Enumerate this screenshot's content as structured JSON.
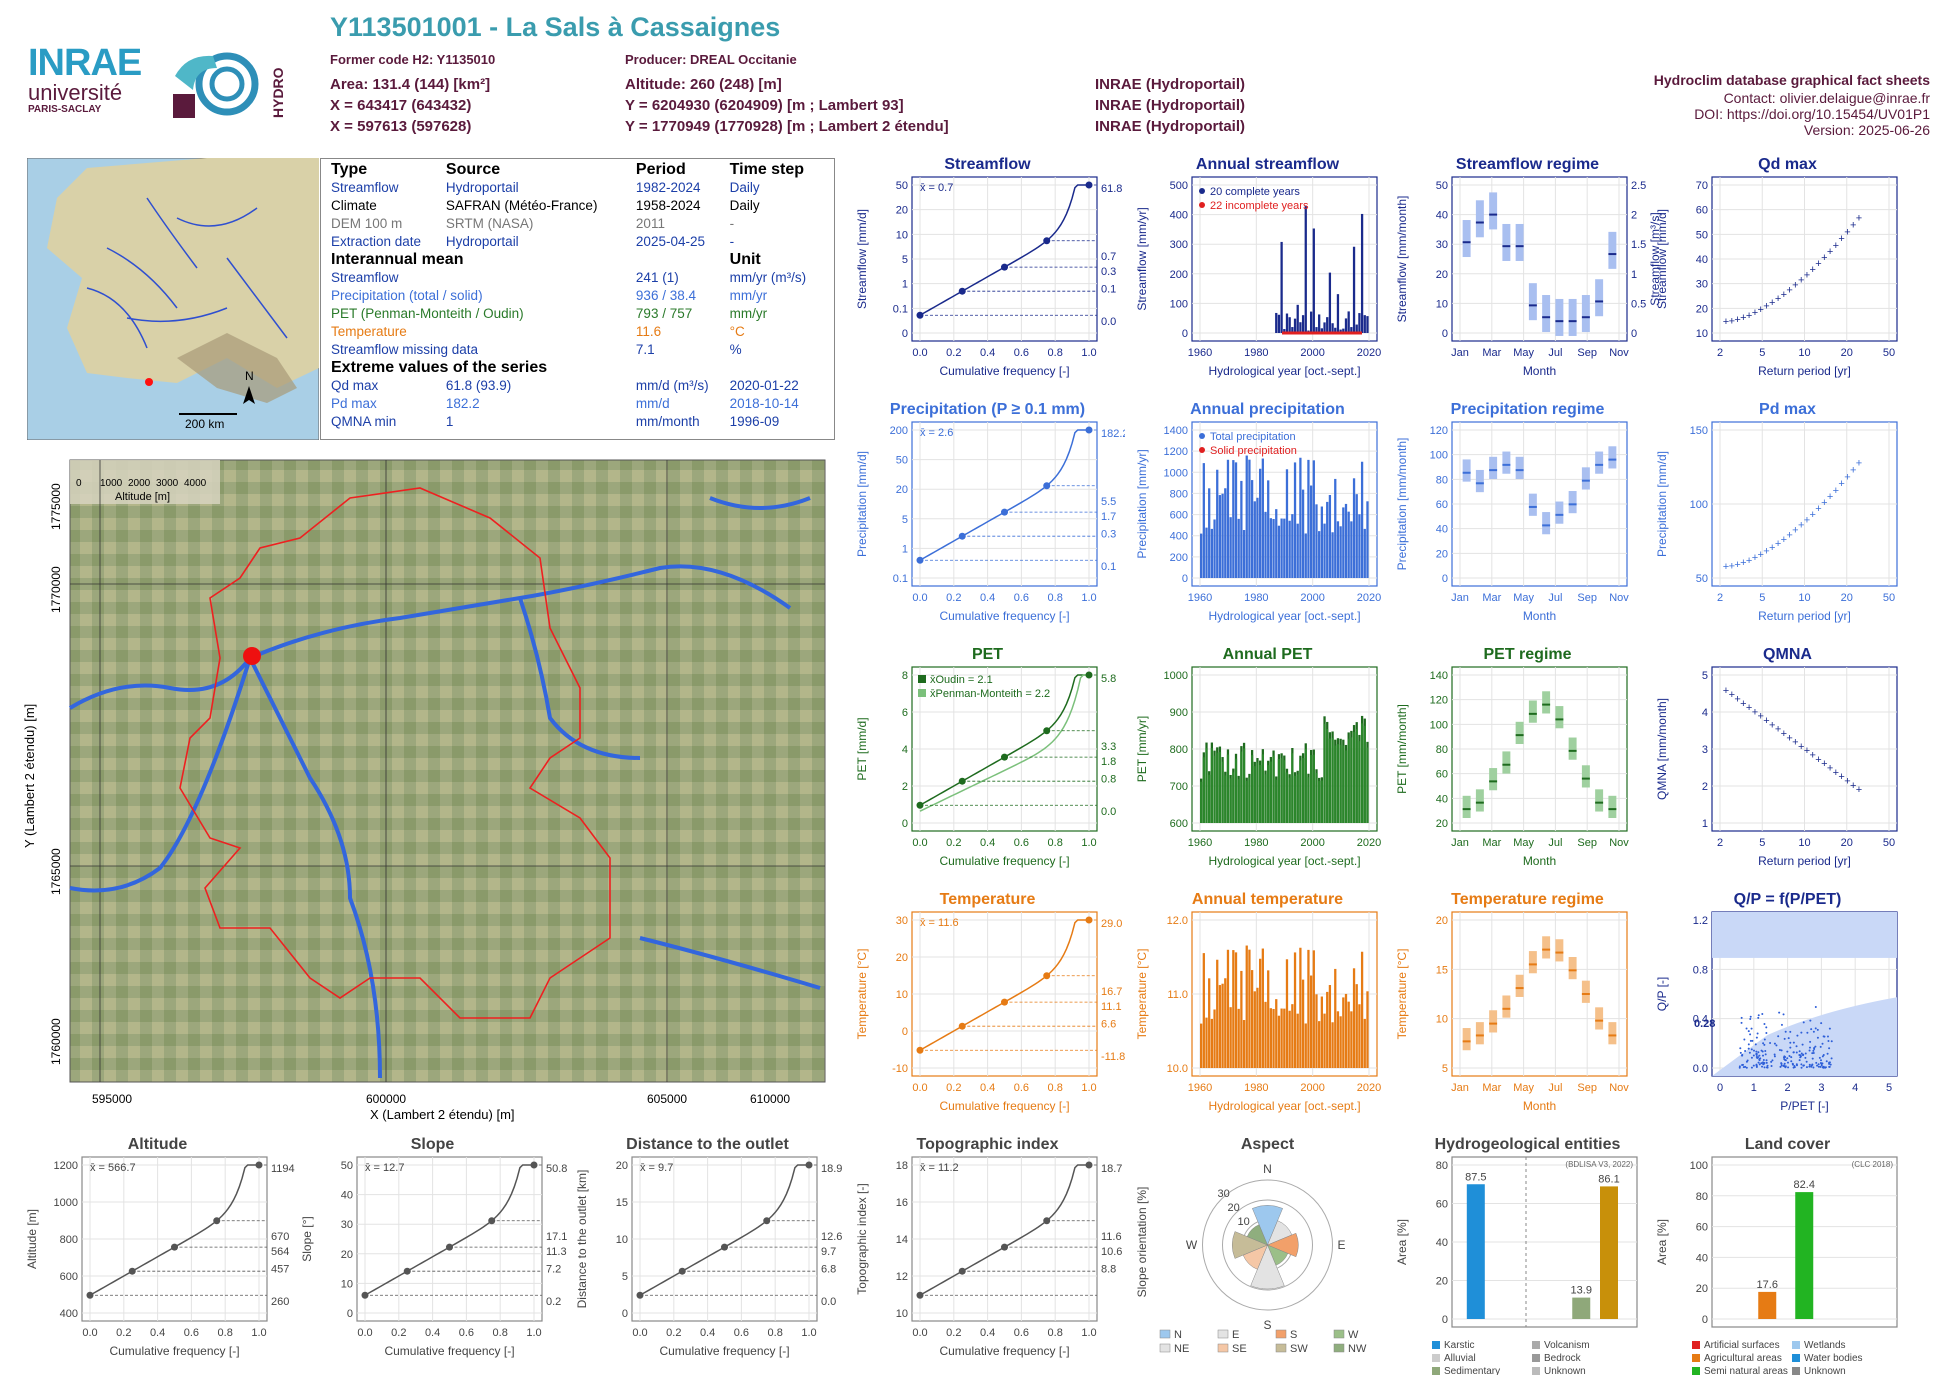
{
  "header": {
    "station": "Y113501001 - La Sals à Cassaignes",
    "former_code": "Former code H2: Y1135010",
    "producer": "Producer: DREAL Occitanie",
    "area": "Area: 131.4 (144) [km²]",
    "altitude": "Altitude: 260 (248) [m]",
    "x_l93": "X = 643417 (643432)",
    "y_l93": "Y = 6204930 (6204909) [m ; Lambert 93]",
    "x_l2": "X = 597613 (597628)",
    "y_l2": "Y = 1770949 (1770928) [m ; Lambert 2 étendu]",
    "src1": "INRAE (Hydroportail)",
    "src2": "INRAE (Hydroportail)",
    "src3": "INRAE (Hydroportail)",
    "right_title": "Hydroclim database graphical fact sheets",
    "contact": "Contact: olivier.delaigue@inrae.fr",
    "doi": "DOI: https://doi.org/10.15454/UV01P1",
    "version": "Version: 2025-06-26",
    "logo_inrae": "INRAE",
    "logo_univ": "université",
    "logo_paris": "PARIS-SACLAY",
    "logo_hydro": "HYDRO"
  },
  "minimap": {
    "north": "N",
    "scale": "200 km"
  },
  "info": {
    "h_type": "Type",
    "h_source": "Source",
    "h_period": "Period",
    "h_step": "Time step",
    "rows": [
      {
        "type": "Streamflow",
        "source": "Hydroportail",
        "period": "1982-2024",
        "step": "Daily"
      },
      {
        "type": "Climate",
        "source": "SAFRAN (Météo-France)",
        "period": "1958-2024",
        "step": "Daily"
      },
      {
        "type": "DEM 100 m",
        "source": "SRTM (NASA)",
        "period": "2011",
        "step": "-"
      },
      {
        "type": "Extraction date",
        "source": "Hydroportail",
        "period": "2025-04-25",
        "step": "-"
      }
    ],
    "h_mean": "Interannual mean",
    "h_unit": "Unit",
    "means": [
      {
        "name": "Streamflow",
        "val": "241 (1)",
        "unit": "mm/yr (m³/s)"
      },
      {
        "name": "Precipitation (total / solid)",
        "val": "936 / 38.4",
        "unit": "mm/yr"
      },
      {
        "name": "PET (Penman-Monteith / Oudin)",
        "val": "793 / 757",
        "unit": "mm/yr"
      },
      {
        "name": "Temperature",
        "val": "11.6",
        "unit": "°C"
      },
      {
        "name": "Streamflow missing data",
        "val": "7.1",
        "unit": "%"
      }
    ],
    "h_extreme": "Extreme values of the series",
    "extremes": [
      {
        "name": "Qd max",
        "val": "61.8 (93.9)",
        "unit": "mm/d (m³/s)",
        "date": "2020-01-22"
      },
      {
        "name": "Pd max",
        "val": "182.2",
        "unit": "mm/d",
        "date": "2018-10-14"
      },
      {
        "name": "QMNA min",
        "val": "1",
        "unit": "mm/month",
        "date": "1996-09"
      }
    ]
  },
  "map": {
    "ylabel": "Y (Lambert 2 étendu) [m]",
    "xlabel": "X (Lambert 2 étendu) [m]",
    "xticks": [
      "595000",
      "600000",
      "605000",
      "610000"
    ],
    "yticks": [
      "1775000",
      "1770000",
      "1765000",
      "1760000"
    ],
    "legend_title": "Altitude [m]",
    "legend_ticks": [
      "0",
      "1000",
      "2000",
      "3000",
      "4000"
    ]
  },
  "chart_data": [
    {
      "id": "q_cdf",
      "type": "line",
      "title": "Streamflow",
      "xlabel": "Cumulative frequency [-]",
      "ylabel": "Streamflow [mm/d]",
      "mean_label": "x̄ = 0.7",
      "right_labels": [
        "61.8",
        "0.7",
        "0.3",
        "0.1",
        "0.0"
      ],
      "xticks": [
        "0.0",
        "0.2",
        "0.4",
        "0.6",
        "0.8",
        "1.0"
      ],
      "yticks": [
        "0",
        "0.1",
        "1",
        "5",
        "10",
        "20",
        "50"
      ],
      "log": true
    },
    {
      "id": "q_annual",
      "type": "bar",
      "title": "Annual streamflow",
      "xlabel": "Hydrological year [oct.-sept.]",
      "ylabel": "Streamflow [mm/yr]",
      "legend": [
        "20 complete years",
        "22 incomplete years"
      ],
      "xticks": [
        "1960",
        "1980",
        "2000",
        "2020"
      ],
      "yticks": [
        "0",
        "100",
        "200",
        "300",
        "400",
        "500"
      ]
    },
    {
      "id": "q_regime",
      "type": "box",
      "title": "Streamflow regime",
      "xlabel": "Month",
      "ylabel": "Streamflow [mm/month]",
      "ylabel2": "Streamflow [m³/s]",
      "xticks": [
        "Jan",
        "Mar",
        "May",
        "Jul",
        "Sep",
        "Nov"
      ],
      "yticks": [
        "0",
        "10",
        "20",
        "30",
        "40",
        "50"
      ],
      "yticks2": [
        "0",
        "0.5",
        "1",
        "1.5",
        "2",
        "2.5"
      ],
      "medians": [
        23,
        28,
        30,
        22,
        22,
        7,
        4,
        3,
        3,
        4,
        8,
        20
      ]
    },
    {
      "id": "qd_max",
      "type": "scatter",
      "title": "Qd max",
      "xlabel": "Return period [yr]",
      "ylabel": "Streamflow [mm/d]",
      "xticks": [
        "2",
        "5",
        "10",
        "20",
        "50"
      ],
      "yticks": [
        "10",
        "20",
        "30",
        "40",
        "50",
        "60",
        "70"
      ]
    },
    {
      "id": "p_cdf",
      "type": "line",
      "title": "Precipitation (P ≥ 0.1 mm)",
      "xlabel": "Cumulative frequency [-]",
      "ylabel": "Precipitation [mm/d]",
      "mean_label": "x̄ = 2.6",
      "right_labels": [
        "182.2",
        "5.5",
        "1.7",
        "0.3",
        "0.1"
      ],
      "xticks": [
        "0.0",
        "0.2",
        "0.4",
        "0.6",
        "0.8",
        "1.0"
      ],
      "yticks": [
        "0.1",
        "1",
        "5",
        "20",
        "50",
        "200"
      ]
    },
    {
      "id": "p_annual",
      "type": "bar",
      "title": "Annual precipitation",
      "xlabel": "Hydrological year [oct.-sept.]",
      "ylabel": "Precipitation [mm/yr]",
      "legend": [
        "Total precipitation",
        "Solid precipitation"
      ],
      "xticks": [
        "1960",
        "1980",
        "2000",
        "2020"
      ],
      "yticks": [
        "0",
        "200",
        "400",
        "600",
        "800",
        "1000",
        "1200",
        "1400"
      ]
    },
    {
      "id": "p_regime",
      "type": "box",
      "title": "Precipitation regime",
      "xlabel": "Month",
      "ylabel": "Precipitation [mm/month]",
      "xticks": [
        "Jan",
        "Mar",
        "May",
        "Jul",
        "Sep",
        "Nov"
      ],
      "yticks": [
        "0",
        "20",
        "40",
        "60",
        "80",
        "100",
        "120"
      ],
      "medians": [
        80,
        72,
        82,
        86,
        82,
        54,
        40,
        48,
        56,
        74,
        86,
        90
      ]
    },
    {
      "id": "pd_max",
      "type": "scatter",
      "title": "Pd max",
      "xlabel": "Return period [yr]",
      "ylabel": "Precipitation [mm/d]",
      "xticks": [
        "2",
        "5",
        "10",
        "20",
        "50"
      ],
      "yticks": [
        "50",
        "100",
        "150"
      ]
    },
    {
      "id": "pet_cdf",
      "type": "line",
      "title": "PET",
      "xlabel": "Cumulative frequency [-]",
      "ylabel": "PET [mm/d]",
      "legend": [
        "x̄Oudin = 2.1",
        "x̄Penman-Monteith = 2.2"
      ],
      "right_labels": [
        "5.8",
        "3.3",
        "1.8",
        "0.8",
        "0.0"
      ],
      "xticks": [
        "0.0",
        "0.2",
        "0.4",
        "0.6",
        "0.8",
        "1.0"
      ],
      "yticks": [
        "0",
        "2",
        "4",
        "6",
        "8"
      ]
    },
    {
      "id": "pet_annual",
      "type": "bar",
      "title": "Annual PET",
      "xlabel": "Hydrological year [oct.-sept.]",
      "ylabel": "PET [mm/yr]",
      "xticks": [
        "1960",
        "1980",
        "2000",
        "2020"
      ],
      "yticks": [
        "600",
        "700",
        "800",
        "900",
        "1000"
      ]
    },
    {
      "id": "pet_regime",
      "type": "box",
      "title": "PET regime",
      "xlabel": "Month",
      "ylabel": "PET [mm/month]",
      "xticks": [
        "Jan",
        "Mar",
        "May",
        "Jul",
        "Sep",
        "Nov"
      ],
      "yticks": [
        "20",
        "40",
        "60",
        "80",
        "100",
        "120",
        "140"
      ],
      "medians": [
        15,
        22,
        45,
        63,
        95,
        118,
        128,
        112,
        78,
        48,
        22,
        15
      ]
    },
    {
      "id": "qmna",
      "type": "scatter",
      "title": "QMNA",
      "xlabel": "Return period [yr]",
      "ylabel": "QMNA [mm/month]",
      "xticks": [
        "2",
        "5",
        "10",
        "20",
        "50"
      ],
      "yticks": [
        "1",
        "2",
        "3",
        "4",
        "5"
      ]
    },
    {
      "id": "t_cdf",
      "type": "line",
      "title": "Temperature",
      "xlabel": "Cumulative frequency [-]",
      "ylabel": "Temperature [°C]",
      "mean_label": "x̄ = 11.6",
      "right_labels": [
        "29.0",
        "16.7",
        "11.1",
        "6.6",
        "-11.8"
      ],
      "xticks": [
        "0.0",
        "0.2",
        "0.4",
        "0.6",
        "0.8",
        "1.0"
      ],
      "yticks": [
        "-10",
        "0",
        "10",
        "20",
        "30"
      ]
    },
    {
      "id": "t_annual",
      "type": "bar",
      "title": "Annual temperature",
      "xlabel": "Hydrological year [oct.-sept.]",
      "ylabel": "Temperature [°C]",
      "xticks": [
        "1960",
        "1980",
        "2000",
        "2020"
      ],
      "yticks": [
        "10.0",
        "11.0",
        "12.0"
      ]
    },
    {
      "id": "t_regime",
      "type": "box",
      "title": "Temperature regime",
      "xlabel": "Month",
      "ylabel": "Temperature [°C]",
      "xticks": [
        "Jan",
        "Mar",
        "May",
        "Jul",
        "Sep",
        "Nov"
      ],
      "yticks": [
        "5",
        "10",
        "15",
        "20"
      ],
      "medians": [
        4.5,
        5.5,
        7.5,
        10,
        13.5,
        17.5,
        20,
        19.5,
        16.5,
        12.5,
        8,
        5.5
      ]
    },
    {
      "id": "qp",
      "type": "scatter",
      "title": "Q/P = f(P/PET)",
      "xlabel": "P/PET [-]",
      "ylabel": "Q/P [-]",
      "annotation": "0.28",
      "xticks": [
        "0",
        "1",
        "2",
        "3",
        "4",
        "5"
      ],
      "yticks": [
        "0.0",
        "0.4",
        "0.8",
        "1.2"
      ]
    },
    {
      "id": "alt_cdf",
      "type": "line",
      "title": "Altitude",
      "xlabel": "Cumulative frequency [-]",
      "ylabel": "Altitude [m]",
      "mean_label": "x̄ = 566.7",
      "right_labels": [
        "1194",
        "670",
        "564",
        "457",
        "260"
      ],
      "xticks": [
        "0.0",
        "0.2",
        "0.4",
        "0.6",
        "0.8",
        "1.0"
      ],
      "yticks": [
        "400",
        "600",
        "800",
        "1000",
        "1200"
      ]
    },
    {
      "id": "slope_cdf",
      "type": "line",
      "title": "Slope",
      "xlabel": "Cumulative frequency [-]",
      "ylabel": "Slope [°]",
      "mean_label": "x̄ = 12.7",
      "right_labels": [
        "50.8",
        "17.1",
        "11.3",
        "7.2",
        "0.2"
      ],
      "xticks": [
        "0.0",
        "0.2",
        "0.4",
        "0.6",
        "0.8",
        "1.0"
      ],
      "yticks": [
        "0",
        "10",
        "20",
        "30",
        "40",
        "50"
      ]
    },
    {
      "id": "dist_cdf",
      "type": "line",
      "title": "Distance to the outlet",
      "xlabel": "Cumulative frequency [-]",
      "ylabel": "Distance to the outlet [km]",
      "mean_label": "x̄ = 9.7",
      "right_labels": [
        "18.9",
        "12.6",
        "9.7",
        "6.8",
        "0.0"
      ],
      "xticks": [
        "0.0",
        "0.2",
        "0.4",
        "0.6",
        "0.8",
        "1.0"
      ],
      "yticks": [
        "0",
        "5",
        "10",
        "15",
        "20"
      ]
    },
    {
      "id": "topo_cdf",
      "type": "line",
      "title": "Topographic index",
      "xlabel": "Cumulative frequency [-]",
      "ylabel": "Topographic index [-]",
      "mean_label": "x̄ = 11.2",
      "right_labels": [
        "18.7",
        "11.6",
        "10.6",
        "8.8"
      ],
      "xticks": [
        "0.0",
        "0.2",
        "0.4",
        "0.6",
        "0.8",
        "1.0"
      ],
      "yticks": [
        "10",
        "12",
        "14",
        "16",
        "18"
      ]
    },
    {
      "id": "aspect",
      "type": "pie",
      "title": "Aspect",
      "ylabel": "Slope orientation [%]",
      "dirs": [
        "N",
        "E",
        "S",
        "W"
      ],
      "rings": [
        "10",
        "20",
        "30"
      ],
      "legend": [
        "N",
        "E",
        "S",
        "W",
        "NE",
        "SE",
        "SW",
        "NW"
      ],
      "values": [
        18,
        12,
        14,
        10,
        20,
        12,
        16,
        10
      ]
    },
    {
      "id": "hydrogeo",
      "type": "bar",
      "title": "Hydrogeological entities",
      "ylabel": "Area [%]",
      "note": "(BDLISA V3, 2022)",
      "values": [
        {
          "name": "Karstic",
          "value": 87.5,
          "color": "#1f8fd8"
        },
        {
          "name": "Sedimentary",
          "value": 13.9,
          "color": "#8fa87a"
        },
        {
          "name": "Intensively folded formation",
          "value": 86.1,
          "color": "#c8900a"
        }
      ],
      "yticks": [
        "0",
        "20",
        "40",
        "60",
        "80"
      ],
      "legend": [
        "Karstic",
        "Volcanism",
        "Alluvial",
        "Bedrock",
        "Sedimentary",
        "Unknown",
        "Intensively folded formation"
      ],
      "labels": [
        "87.5",
        "13.9",
        "86.1"
      ]
    },
    {
      "id": "landcover",
      "type": "bar",
      "title": "Land cover",
      "ylabel": "Area [%]",
      "note": "(CLC 2018)",
      "values": [
        {
          "name": "Agricultural areas",
          "value": 17.6,
          "color": "#e67b14"
        },
        {
          "name": "Semi natural areas",
          "value": 82.4,
          "color": "#22b422"
        }
      ],
      "yticks": [
        "0",
        "20",
        "40",
        "60",
        "80",
        "100"
      ],
      "legend": [
        "Artificial surfaces",
        "Wetlands",
        "Agricultural areas",
        "Water bodies",
        "Semi natural areas",
        "Unknown"
      ],
      "labels": [
        "17.6",
        "82.4"
      ]
    }
  ]
}
